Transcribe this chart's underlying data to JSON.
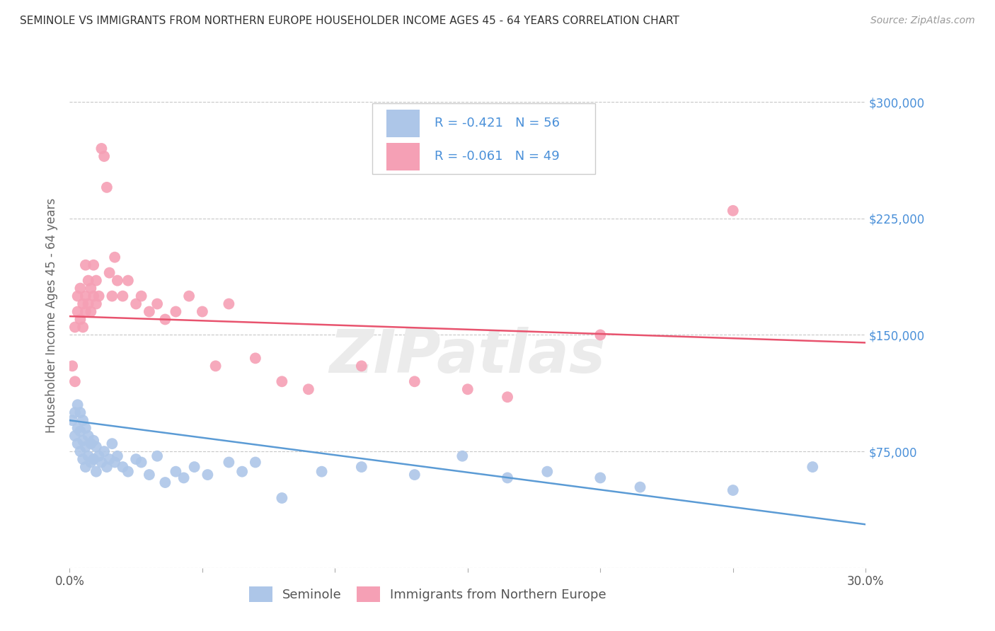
{
  "title": "SEMINOLE VS IMMIGRANTS FROM NORTHERN EUROPE HOUSEHOLDER INCOME AGES 45 - 64 YEARS CORRELATION CHART",
  "source": "Source: ZipAtlas.com",
  "ylabel": "Householder Income Ages 45 - 64 years",
  "xlim": [
    0.0,
    0.3
  ],
  "ylim": [
    0,
    325000
  ],
  "xticks": [
    0.0,
    0.05,
    0.1,
    0.15,
    0.2,
    0.25,
    0.3
  ],
  "xticklabels": [
    "0.0%",
    "",
    "",
    "",
    "",
    "",
    "30.0%"
  ],
  "ytick_positions": [
    0,
    75000,
    150000,
    225000,
    300000
  ],
  "ytick_labels": [
    "",
    "$75,000",
    "$150,000",
    "$225,000",
    "$300,000"
  ],
  "grid_color": "#c8c8c8",
  "background_color": "#ffffff",
  "seminole_color": "#adc6e8",
  "immigrants_color": "#f5a0b5",
  "seminole_line_color": "#5b9bd5",
  "immigrants_line_color": "#e8536e",
  "R_seminole": -0.421,
  "N_seminole": 56,
  "R_immigrants": -0.061,
  "N_immigrants": 49,
  "legend_label_seminole": "Seminole",
  "legend_label_immigrants": "Immigrants from Northern Europe",
  "watermark": "ZIPatlas",
  "seminole_x": [
    0.001,
    0.002,
    0.002,
    0.003,
    0.003,
    0.003,
    0.004,
    0.004,
    0.004,
    0.005,
    0.005,
    0.005,
    0.006,
    0.006,
    0.006,
    0.007,
    0.007,
    0.008,
    0.008,
    0.009,
    0.009,
    0.01,
    0.01,
    0.011,
    0.012,
    0.013,
    0.014,
    0.015,
    0.016,
    0.017,
    0.018,
    0.02,
    0.022,
    0.025,
    0.027,
    0.03,
    0.033,
    0.036,
    0.04,
    0.043,
    0.047,
    0.052,
    0.06,
    0.065,
    0.07,
    0.08,
    0.095,
    0.11,
    0.13,
    0.148,
    0.165,
    0.18,
    0.2,
    0.215,
    0.25,
    0.28
  ],
  "seminole_y": [
    95000,
    100000,
    85000,
    105000,
    90000,
    80000,
    100000,
    88000,
    75000,
    95000,
    82000,
    70000,
    90000,
    78000,
    65000,
    85000,
    72000,
    80000,
    68000,
    82000,
    70000,
    78000,
    62000,
    72000,
    68000,
    75000,
    65000,
    70000,
    80000,
    68000,
    72000,
    65000,
    62000,
    70000,
    68000,
    60000,
    72000,
    55000,
    62000,
    58000,
    65000,
    60000,
    68000,
    62000,
    68000,
    45000,
    62000,
    65000,
    60000,
    72000,
    58000,
    62000,
    58000,
    52000,
    50000,
    65000
  ],
  "immigrants_x": [
    0.001,
    0.002,
    0.002,
    0.003,
    0.003,
    0.004,
    0.004,
    0.005,
    0.005,
    0.006,
    0.006,
    0.006,
    0.007,
    0.007,
    0.008,
    0.008,
    0.009,
    0.009,
    0.01,
    0.01,
    0.011,
    0.012,
    0.013,
    0.014,
    0.015,
    0.016,
    0.017,
    0.018,
    0.02,
    0.022,
    0.025,
    0.027,
    0.03,
    0.033,
    0.036,
    0.04,
    0.045,
    0.05,
    0.055,
    0.06,
    0.07,
    0.08,
    0.09,
    0.11,
    0.13,
    0.15,
    0.165,
    0.2,
    0.25
  ],
  "immigrants_y": [
    130000,
    155000,
    120000,
    165000,
    175000,
    160000,
    180000,
    155000,
    170000,
    165000,
    175000,
    195000,
    170000,
    185000,
    180000,
    165000,
    175000,
    195000,
    170000,
    185000,
    175000,
    270000,
    265000,
    245000,
    190000,
    175000,
    200000,
    185000,
    175000,
    185000,
    170000,
    175000,
    165000,
    170000,
    160000,
    165000,
    175000,
    165000,
    130000,
    170000,
    135000,
    120000,
    115000,
    130000,
    120000,
    115000,
    110000,
    150000,
    230000
  ]
}
